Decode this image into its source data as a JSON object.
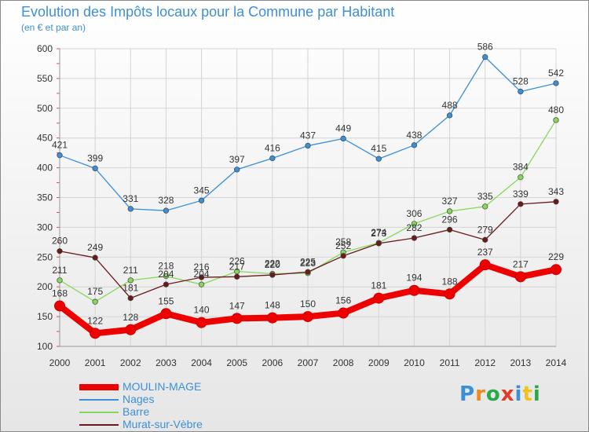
{
  "header": {
    "title": "Evolution des Impôts locaux pour la Commune par Habitant",
    "subtitle": "(en € et par an)"
  },
  "logo": {
    "text": "Proxiti",
    "letters": [
      {
        "ch": "P",
        "color": "#3a8fd8"
      },
      {
        "ch": "r",
        "color": "#f08a1c"
      },
      {
        "ch": "o",
        "color": "#2aa84a"
      },
      {
        "ch": "x",
        "color": "#e03a2a"
      },
      {
        "ch": "i",
        "color": "#3a8fd8"
      },
      {
        "ch": "t",
        "color": "#f0c21c"
      },
      {
        "ch": "i",
        "color": "#2aa84a"
      }
    ]
  },
  "chart_data": {
    "type": "line",
    "title": "Evolution des Impôts locaux pour la Commune par Habitant",
    "subtitle": "(en € et par an)",
    "xlabel": "",
    "ylabel": "",
    "ylim": [
      100,
      600
    ],
    "yticks": [
      100,
      150,
      200,
      250,
      300,
      350,
      400,
      450,
      500,
      550,
      600
    ],
    "grid": true,
    "legend_position": "bottom-left",
    "x": [
      "2000",
      "2001",
      "2002",
      "2003",
      "2004",
      "2005",
      "2006",
      "2007",
      "2008",
      "2009",
      "2010",
      "2011",
      "2012",
      "2013",
      "2014"
    ],
    "series": [
      {
        "name": "MOULIN-MAGE",
        "color": "#ee0000",
        "values": [
          168,
          122,
          128,
          155,
          140,
          147,
          148,
          150,
          156,
          181,
          194,
          188,
          237,
          217,
          229
        ]
      },
      {
        "name": "Nages",
        "color": "#3a8fd8",
        "values": [
          421,
          399,
          331,
          328,
          345,
          397,
          416,
          437,
          449,
          415,
          438,
          488,
          586,
          528,
          542
        ]
      },
      {
        "name": "Barre",
        "color": "#86d85a",
        "values": [
          211,
          175,
          211,
          218,
          204,
          226,
          222,
          223,
          258,
          274,
          306,
          327,
          335,
          384,
          480
        ]
      },
      {
        "name": "Murat-sur-Vèbre",
        "color": "#6a1a1a",
        "values": [
          260,
          249,
          181,
          204,
          216,
          217,
          220,
          225,
          252,
          273,
          282,
          296,
          279,
          339,
          343
        ]
      }
    ]
  }
}
